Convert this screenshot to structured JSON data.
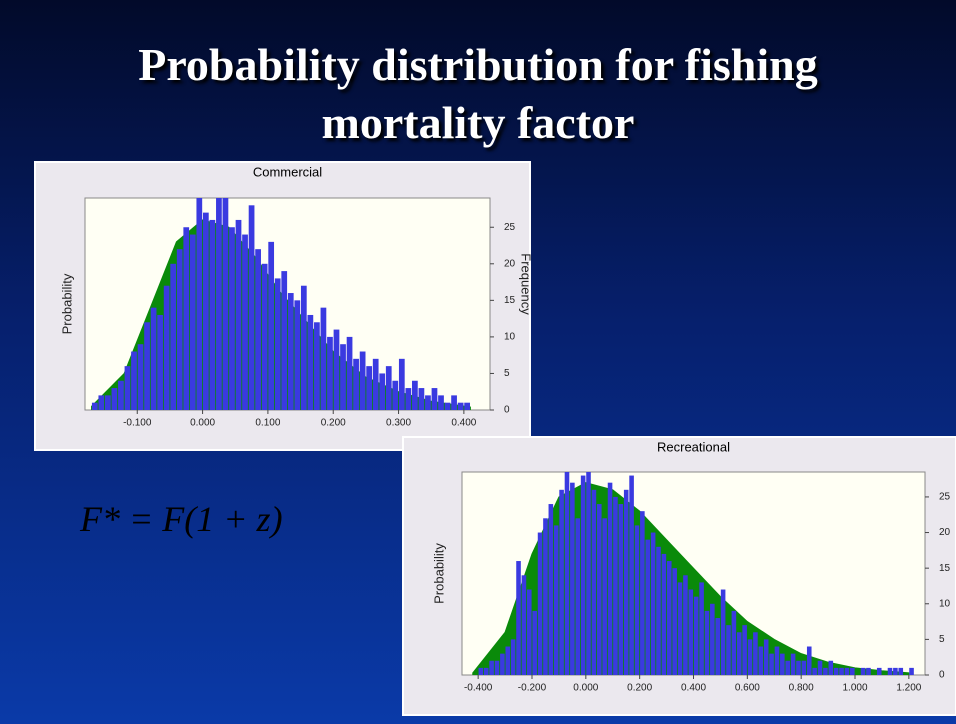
{
  "slide": {
    "title": "Probability distribution for fishing mortality factor",
    "formula": "F* = F(1 + z)"
  },
  "chart_data": [
    {
      "type": "histogram",
      "title": "Commercial",
      "ylabel": "Probability",
      "y2label": "Frequency",
      "color": "#3a3ae0",
      "fit": {
        "color": "#0a8a0a",
        "x": [
          -0.17,
          -0.12,
          -0.08,
          -0.04,
          0,
          0.04,
          0.08,
          0.12,
          0.16,
          0.2,
          0.25,
          0.3,
          0.35,
          0.41
        ],
        "values": [
          0.5,
          5,
          14,
          23,
          26,
          25,
          21,
          16,
          12,
          8,
          4.5,
          2.5,
          1.2,
          0.4
        ]
      },
      "bins": [
        -0.17,
        -0.16,
        -0.15,
        -0.14,
        -0.13,
        -0.12,
        -0.11,
        -0.1,
        -0.09,
        -0.08,
        -0.07,
        -0.06,
        -0.05,
        -0.04,
        -0.03,
        -0.02,
        -0.01,
        0,
        0.01,
        0.02,
        0.03,
        0.04,
        0.05,
        0.06,
        0.07,
        0.08,
        0.09,
        0.1,
        0.11,
        0.12,
        0.13,
        0.14,
        0.15,
        0.16,
        0.17,
        0.18,
        0.19,
        0.2,
        0.21,
        0.22,
        0.23,
        0.24,
        0.25,
        0.26,
        0.27,
        0.28,
        0.29,
        0.3,
        0.31,
        0.32,
        0.33,
        0.34,
        0.35,
        0.36,
        0.37,
        0.38,
        0.39,
        0.4,
        0.41
      ],
      "values": [
        1,
        2,
        2,
        3,
        4,
        6,
        8,
        9,
        12,
        14,
        13,
        17,
        20,
        22,
        25,
        24,
        30,
        27,
        26,
        29,
        30,
        25,
        26,
        24,
        28,
        22,
        20,
        23,
        18,
        19,
        16,
        15,
        17,
        13,
        12,
        14,
        10,
        11,
        9,
        10,
        7,
        8,
        6,
        7,
        5,
        6,
        4,
        7,
        3,
        4,
        3,
        2,
        3,
        2,
        1,
        2,
        1,
        1
      ],
      "xlim": [
        -0.18,
        0.44
      ],
      "xticks": [
        {
          "value": -0.1,
          "label": "-0.100"
        },
        {
          "value": 0,
          "label": "0.000"
        },
        {
          "value": 0.1,
          "label": "0.100"
        },
        {
          "value": 0.2,
          "label": "0.200"
        },
        {
          "value": 0.3,
          "label": "0.300"
        },
        {
          "value": 0.4,
          "label": "0.400"
        }
      ],
      "ylim": [
        0,
        29
      ],
      "yticks": [
        0,
        5,
        10,
        15,
        20,
        25
      ]
    },
    {
      "type": "histogram",
      "title": "Recreational",
      "ylabel": "Probability",
      "color": "#3a3ae0",
      "fit": {
        "color": "#0a8a0a",
        "x": [
          -0.42,
          -0.3,
          -0.2,
          -0.1,
          0,
          0.1,
          0.2,
          0.3,
          0.4,
          0.5,
          0.6,
          0.7,
          0.8,
          0.9,
          1.0,
          1.1,
          1.2
        ],
        "values": [
          0.3,
          6,
          17,
          25,
          27,
          26,
          23,
          19,
          15,
          11,
          7.5,
          5,
          3,
          1.8,
          1,
          0.6,
          0.3
        ]
      },
      "bins": [
        -0.42,
        -0.4,
        -0.38,
        -0.36,
        -0.34,
        -0.32,
        -0.3,
        -0.28,
        -0.26,
        -0.24,
        -0.22,
        -0.2,
        -0.18,
        -0.16,
        -0.14,
        -0.12,
        -0.1,
        -0.08,
        -0.06,
        -0.04,
        -0.02,
        0,
        0.02,
        0.04,
        0.06,
        0.08,
        0.1,
        0.12,
        0.14,
        0.16,
        0.18,
        0.2,
        0.22,
        0.24,
        0.26,
        0.28,
        0.3,
        0.32,
        0.34,
        0.36,
        0.38,
        0.4,
        0.42,
        0.44,
        0.46,
        0.48,
        0.5,
        0.52,
        0.54,
        0.56,
        0.58,
        0.6,
        0.62,
        0.64,
        0.66,
        0.68,
        0.7,
        0.72,
        0.74,
        0.76,
        0.78,
        0.8,
        0.82,
        0.84,
        0.86,
        0.88,
        0.9,
        0.92,
        0.94,
        0.96,
        0.98,
        1.0,
        1.02,
        1.04,
        1.06,
        1.08,
        1.1,
        1.12,
        1.14,
        1.16,
        1.18,
        1.2,
        1.22
      ],
      "values": [
        0,
        1,
        1,
        2,
        2,
        3,
        4,
        5,
        16,
        14,
        12,
        9,
        20,
        22,
        24,
        21,
        26,
        30,
        27,
        22,
        28,
        30,
        26,
        24,
        22,
        27,
        25,
        24,
        26,
        28,
        21,
        23,
        19,
        20,
        18,
        17,
        16,
        15,
        13,
        14,
        12,
        11,
        13,
        9,
        10,
        8,
        12,
        7,
        9,
        6,
        7,
        5,
        6,
        4,
        5,
        3,
        4,
        3,
        2,
        3,
        2,
        2,
        4,
        1,
        2,
        1,
        2,
        1,
        1,
        1,
        1,
        0,
        1,
        1,
        0,
        1,
        0,
        1,
        1,
        1,
        0,
        1
      ],
      "xlim": [
        -0.46,
        1.26
      ],
      "xticks": [
        {
          "value": -0.4,
          "label": "-0.400"
        },
        {
          "value": -0.2,
          "label": "-0.200"
        },
        {
          "value": 0,
          "label": "0.000"
        },
        {
          "value": 0.2,
          "label": "0.200"
        },
        {
          "value": 0.4,
          "label": "0.400"
        },
        {
          "value": 0.6,
          "label": "0.600"
        },
        {
          "value": 0.8,
          "label": "0.800"
        },
        {
          "value": 1.0,
          "label": "1.000"
        },
        {
          "value": 1.2,
          "label": "1.200"
        }
      ],
      "ylim": [
        0,
        28.5
      ],
      "yticks": [
        0,
        5,
        10,
        15,
        20,
        25
      ]
    }
  ]
}
